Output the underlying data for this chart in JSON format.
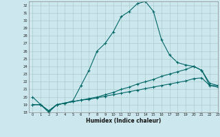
{
  "title": "",
  "xlabel": "Humidex (Indice chaleur)",
  "xlim": [
    -0.5,
    23
  ],
  "ylim": [
    18,
    32.5
  ],
  "yticks": [
    18,
    19,
    20,
    21,
    22,
    23,
    24,
    25,
    26,
    27,
    28,
    29,
    30,
    31,
    32
  ],
  "xticks": [
    0,
    1,
    2,
    3,
    4,
    5,
    6,
    7,
    8,
    9,
    10,
    11,
    12,
    13,
    14,
    15,
    16,
    17,
    18,
    19,
    20,
    21,
    22,
    23
  ],
  "bg_color": "#cce8ee",
  "grid_color": "#aacccc",
  "line_color": "#006666",
  "line1_x": [
    0,
    1,
    2,
    3,
    4,
    5,
    6,
    7,
    8,
    9,
    10,
    11,
    12,
    13,
    14,
    15,
    16,
    17,
    18,
    19,
    20,
    21,
    22,
    23
  ],
  "line1_y": [
    20.0,
    19.0,
    18.0,
    19.0,
    19.2,
    19.5,
    21.5,
    23.5,
    26.0,
    27.0,
    28.5,
    30.5,
    31.2,
    32.2,
    32.5,
    31.2,
    27.5,
    25.5,
    24.5,
    24.2,
    24.0,
    23.5,
    21.5,
    21.5
  ],
  "line2_x": [
    0,
    1,
    2,
    3,
    4,
    5,
    6,
    7,
    8,
    9,
    10,
    11,
    12,
    13,
    14,
    15,
    16,
    17,
    18,
    19,
    20,
    21,
    22,
    23
  ],
  "line2_y": [
    19.0,
    19.0,
    18.2,
    19.0,
    19.2,
    19.4,
    19.6,
    19.7,
    19.9,
    20.1,
    20.3,
    20.5,
    20.7,
    20.9,
    21.1,
    21.3,
    21.5,
    21.7,
    21.9,
    22.1,
    22.4,
    22.5,
    21.5,
    21.3
  ],
  "line3_x": [
    0,
    1,
    2,
    3,
    4,
    5,
    6,
    7,
    8,
    9,
    10,
    11,
    12,
    13,
    14,
    15,
    16,
    17,
    18,
    19,
    20,
    21,
    22,
    23
  ],
  "line3_y": [
    19.0,
    19.0,
    18.2,
    19.0,
    19.2,
    19.4,
    19.6,
    19.8,
    20.0,
    20.3,
    20.6,
    21.0,
    21.3,
    21.7,
    22.0,
    22.3,
    22.7,
    23.0,
    23.3,
    23.6,
    24.0,
    23.5,
    21.8,
    21.5
  ]
}
